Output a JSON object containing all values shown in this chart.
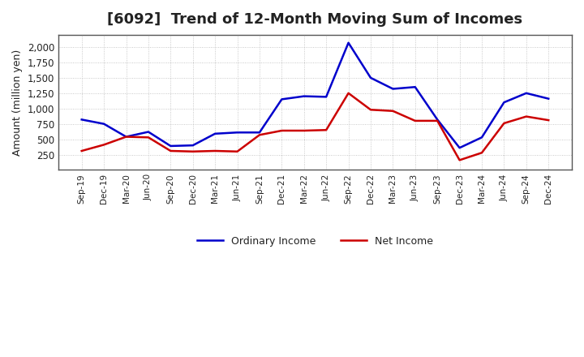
{
  "title": "[6092]  Trend of 12-Month Moving Sum of Incomes",
  "ylabel": "Amount (million yen)",
  "background_color": "#ffffff",
  "grid_color": "#aaaaaa",
  "plot_bg_color": "#ffffff",
  "ordinary_income_color": "#0000cc",
  "net_income_color": "#cc0000",
  "x_labels": [
    "Sep-19",
    "Dec-19",
    "Mar-20",
    "Jun-20",
    "Sep-20",
    "Dec-20",
    "Mar-21",
    "Jun-21",
    "Sep-21",
    "Dec-21",
    "Mar-22",
    "Jun-22",
    "Sep-22",
    "Dec-22",
    "Mar-23",
    "Jun-23",
    "Sep-23",
    "Dec-23",
    "Mar-24",
    "Jun-24",
    "Sep-24",
    "Dec-24"
  ],
  "ordinary_income": [
    820,
    750,
    540,
    620,
    390,
    400,
    590,
    610,
    610,
    1150,
    1200,
    1190,
    2070,
    1500,
    1320,
    1350,
    820,
    360,
    530,
    1100,
    1250,
    1160
  ],
  "net_income": [
    310,
    410,
    540,
    530,
    310,
    300,
    310,
    300,
    570,
    640,
    640,
    650,
    1250,
    980,
    960,
    800,
    800,
    160,
    280,
    760,
    870,
    810
  ],
  "ylim": [
    0,
    2200
  ],
  "yticks": [
    250,
    500,
    750,
    1000,
    1250,
    1500,
    1750,
    2000
  ]
}
